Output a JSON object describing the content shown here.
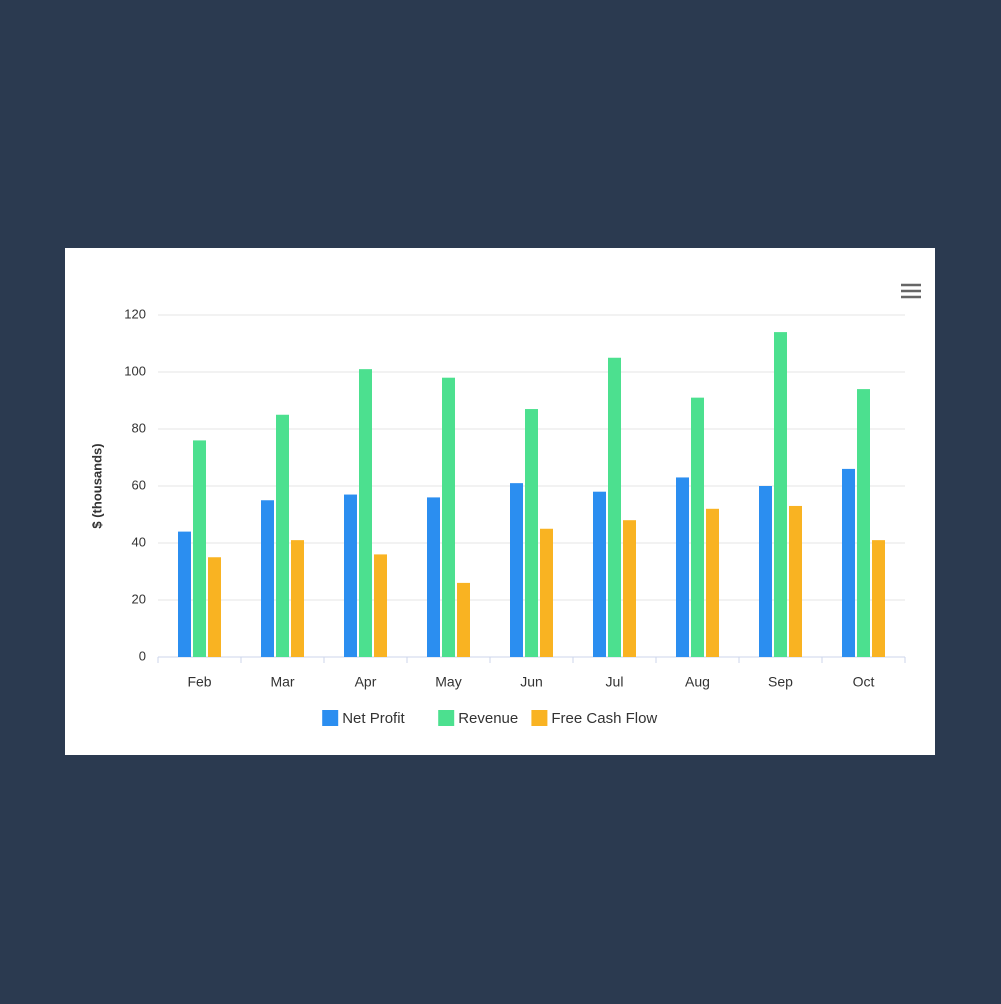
{
  "chart_data": {
    "type": "bar",
    "y_label": "$ (thousands)",
    "categories": [
      "Feb",
      "Mar",
      "Apr",
      "May",
      "Jun",
      "Jul",
      "Aug",
      "Sep",
      "Oct"
    ],
    "series": [
      {
        "name": "Net Profit",
        "color": "#2b8ef0",
        "values": [
          44,
          55,
          57,
          56,
          61,
          58,
          63,
          60,
          66
        ]
      },
      {
        "name": "Revenue",
        "color": "#4ce08f",
        "values": [
          76,
          85,
          101,
          98,
          87,
          105,
          91,
          114,
          94
        ]
      },
      {
        "name": "Free Cash Flow",
        "color": "#f9b322",
        "values": [
          35,
          41,
          36,
          26,
          45,
          48,
          52,
          53,
          41
        ]
      }
    ],
    "ylim": [
      0,
      120
    ],
    "yticks": [
      0,
      20,
      40,
      60,
      80,
      100,
      120
    ],
    "grid": true,
    "legend": "bottom"
  }
}
